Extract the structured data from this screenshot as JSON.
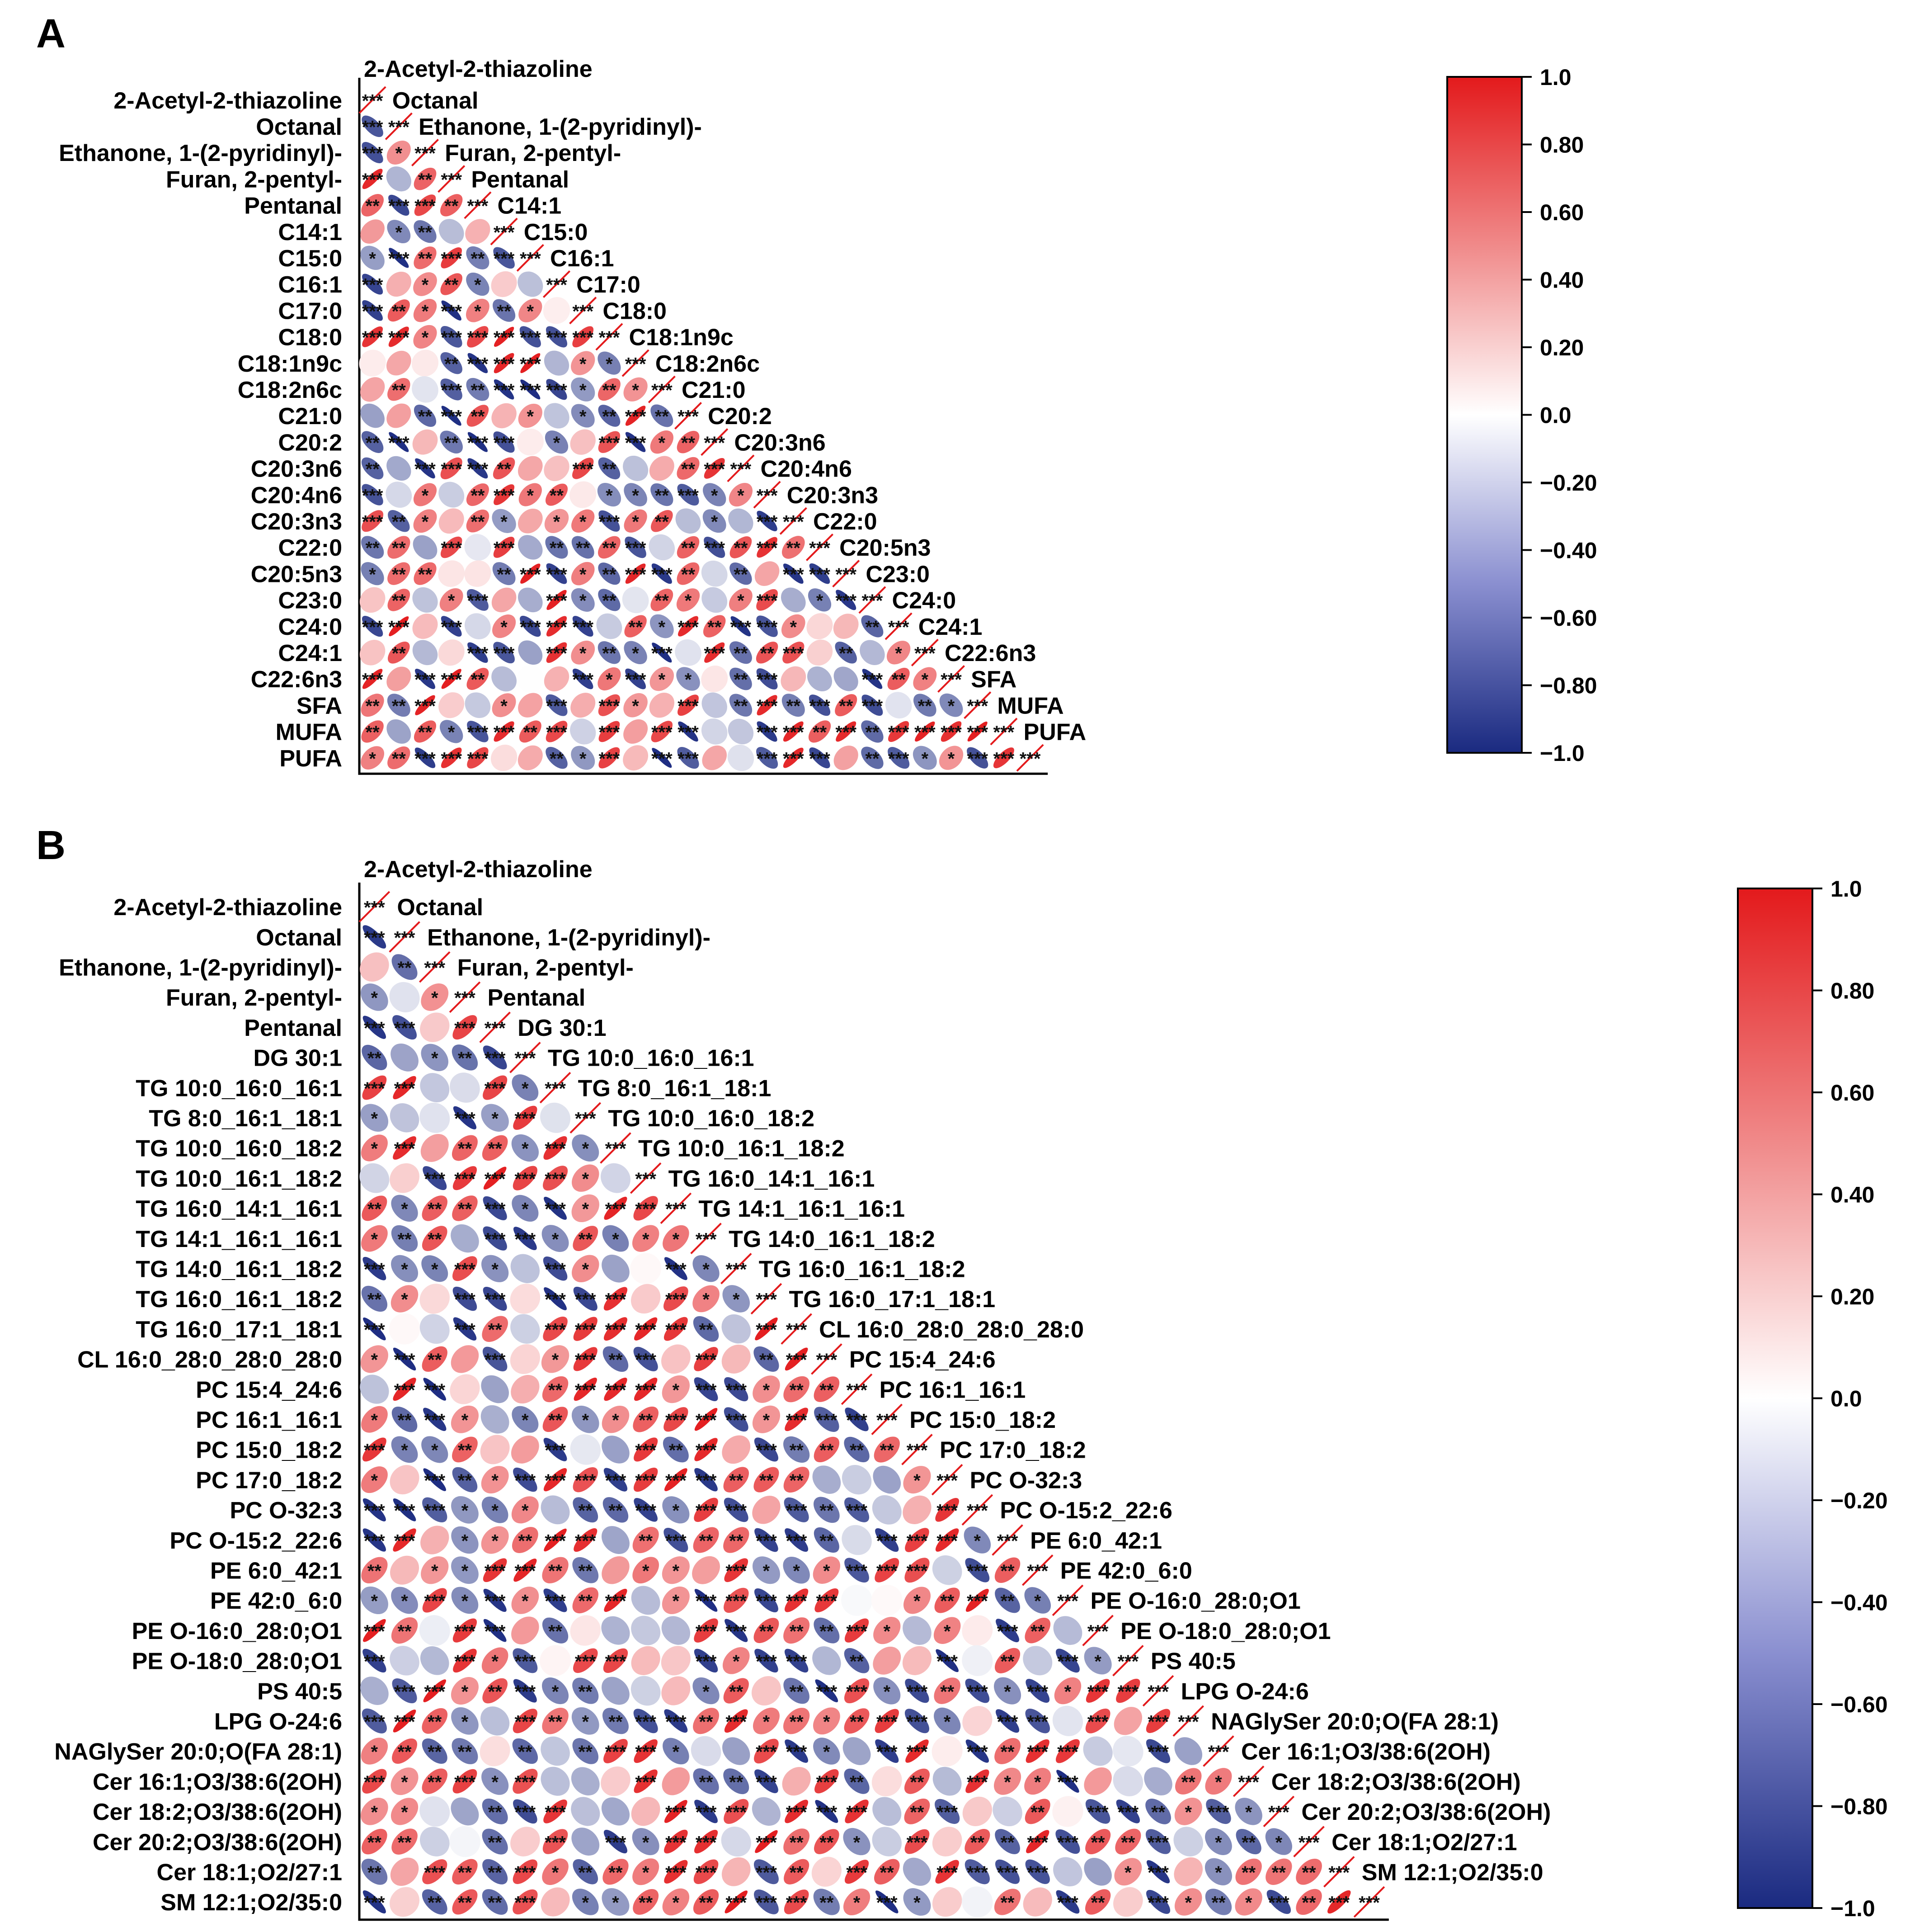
{
  "chart_data": [
    {
      "panel": "A",
      "type": "heatmap",
      "subtype": "lower-triangle correlation ellipse plot",
      "labels": [
        "2-Acetyl-2-thiazoline",
        "Octanal",
        "Ethanone, 1-(2-pyridinyl)-",
        "Furan, 2-pentyl-",
        "Pentanal",
        "C14:1",
        "C15:0",
        "C16:1",
        "C17:0",
        "C18:0",
        "C18:1n9c",
        "C18:2n6c",
        "C21:0",
        "C20:2",
        "C20:3n6",
        "C20:4n6",
        "C20:3n3",
        "C22:0",
        "C20:5n3",
        "C23:0",
        "C24:0",
        "C24:1",
        "C22:6n3",
        "SFA",
        "MUFA",
        "PUFA"
      ],
      "diagonal_annotation": "***",
      "colorbar": {
        "ticks": [
          "1.0",
          "0.80",
          "0.60",
          "0.40",
          "0.20",
          "0.0",
          "−0.20",
          "−0.40",
          "−0.60",
          "−0.80",
          "−1.0"
        ],
        "range": [
          -1,
          1
        ],
        "low_color": "#1a2a80",
        "mid_color": "#ffffff",
        "high_color": "#e31a1c"
      }
    },
    {
      "panel": "B",
      "type": "heatmap",
      "subtype": "lower-triangle correlation ellipse plot",
      "labels": [
        "2-Acetyl-2-thiazoline",
        "Octanal",
        "Ethanone, 1-(2-pyridinyl)-",
        "Furan, 2-pentyl-",
        "Pentanal",
        "DG 30:1",
        "TG 10:0_16:0_16:1",
        "TG 8:0_16:1_18:1",
        "TG 10:0_16:0_18:2",
        "TG 10:0_16:1_18:2",
        "TG 16:0_14:1_16:1",
        "TG 14:1_16:1_16:1",
        "TG 14:0_16:1_18:2",
        "TG 16:0_16:1_18:2",
        "TG 16:0_17:1_18:1",
        "CL 16:0_28:0_28:0_28:0",
        "PC 15:4_24:6",
        "PC 16:1_16:1",
        "PC 15:0_18:2",
        "PC 17:0_18:2",
        "PC O-32:3",
        "PC O-15:2_22:6",
        "PE 6:0_42:1",
        "PE 42:0_6:0",
        "PE O-16:0_28:0;O1",
        "PE O-18:0_28:0;O1",
        "PS 40:5",
        "LPG O-24:6",
        "NAGlySer 20:0;O(FA 28:1)",
        "Cer 16:1;O3/38:6(2OH)",
        "Cer 18:2;O3/38:6(2OH)",
        "Cer 20:2;O3/38:6(2OH)",
        "Cer 18:1;O2/27:1",
        "SM 12:1;O2/35:0"
      ],
      "diagonal_annotation": "***",
      "colorbar": {
        "ticks": [
          "1.0",
          "0.80",
          "0.60",
          "0.40",
          "0.20",
          "0.0",
          "−0.20",
          "−0.40",
          "−0.60",
          "−0.80",
          "−1.0"
        ],
        "range": [
          -1,
          1
        ],
        "low_color": "#1a2a80",
        "mid_color": "#ffffff",
        "high_color": "#e31a1c"
      }
    }
  ],
  "panels": {
    "a_letter": "A",
    "b_letter": "B"
  }
}
